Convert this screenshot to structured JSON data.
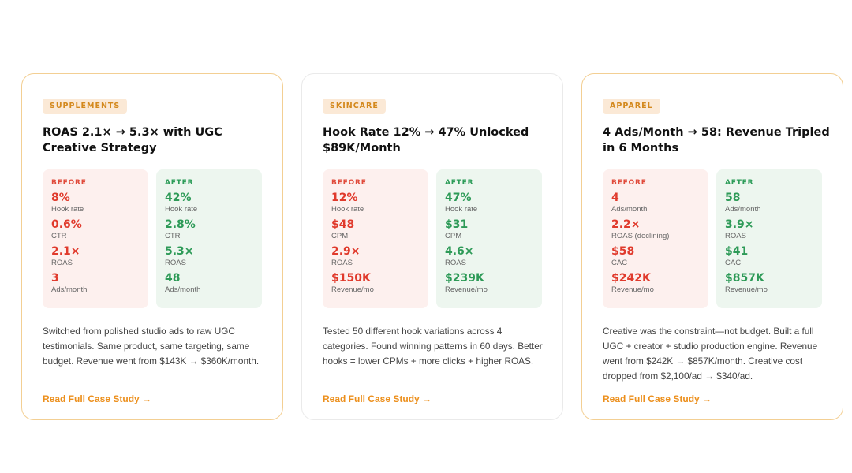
{
  "cards": [
    {
      "category": "SUPPLEMENTS",
      "title": "ROAS 2.1× → 5.3× with UGC Creative Strategy",
      "before_label": "BEFORE",
      "after_label": "AFTER",
      "before": [
        {
          "value": "8%",
          "label": "Hook rate"
        },
        {
          "value": "0.6%",
          "label": "CTR"
        },
        {
          "value": "2.1×",
          "label": "ROAS"
        },
        {
          "value": "3",
          "label": "Ads/month"
        }
      ],
      "after": [
        {
          "value": "42%",
          "label": "Hook rate"
        },
        {
          "value": "2.8%",
          "label": "CTR"
        },
        {
          "value": "5.3×",
          "label": "ROAS"
        },
        {
          "value": "48",
          "label": "Ads/month"
        }
      ],
      "description": "Switched from polished studio ads to raw UGC testimonials. Same product, same targeting, same budget. Revenue went from $143K → $360K/month.",
      "cta": "Read Full Case Study →"
    },
    {
      "category": "SKINCARE",
      "title": "Hook Rate 12% → 47% Unlocked $89K/Month",
      "before_label": "BEFORE",
      "after_label": "AFTER",
      "before": [
        {
          "value": "12%",
          "label": "Hook rate"
        },
        {
          "value": "$48",
          "label": "CPM"
        },
        {
          "value": "2.9×",
          "label": "ROAS"
        },
        {
          "value": "$150K",
          "label": "Revenue/mo"
        }
      ],
      "after": [
        {
          "value": "47%",
          "label": "Hook rate"
        },
        {
          "value": "$31",
          "label": "CPM"
        },
        {
          "value": "4.6×",
          "label": "ROAS"
        },
        {
          "value": "$239K",
          "label": "Revenue/mo"
        }
      ],
      "description": "Tested 50 different hook variations across 4 categories. Found winning patterns in 60 days. Better hooks = lower CPMs + more clicks + higher ROAS.",
      "cta": "Read Full Case Study →"
    },
    {
      "category": "APPAREL",
      "title": "4 Ads/Month → 58: Revenue Tripled in 6 Months",
      "before_label": "BEFORE",
      "after_label": "AFTER",
      "before": [
        {
          "value": "4",
          "label": "Ads/month"
        },
        {
          "value": "2.2×",
          "label": "ROAS (declining)"
        },
        {
          "value": "$58",
          "label": "CAC"
        },
        {
          "value": "$242K",
          "label": "Revenue/mo"
        }
      ],
      "after": [
        {
          "value": "58",
          "label": "Ads/month"
        },
        {
          "value": "3.9×",
          "label": "ROAS"
        },
        {
          "value": "$41",
          "label": "CAC"
        },
        {
          "value": "$857K",
          "label": "Revenue/mo"
        }
      ],
      "description": "Creative was the constraint—not budget. Built a full UGC + creator + studio production engine. Revenue went from $242K → $857K/month. Creative cost dropped from $2,100/ad → $340/ad.",
      "cta": "Read Full Case Study →"
    }
  ],
  "colors": {
    "accent_orange": "#ec8f1c",
    "before_red": "#e03a2c",
    "after_green": "#2d9a57",
    "card_border": "#f3cf93"
  }
}
